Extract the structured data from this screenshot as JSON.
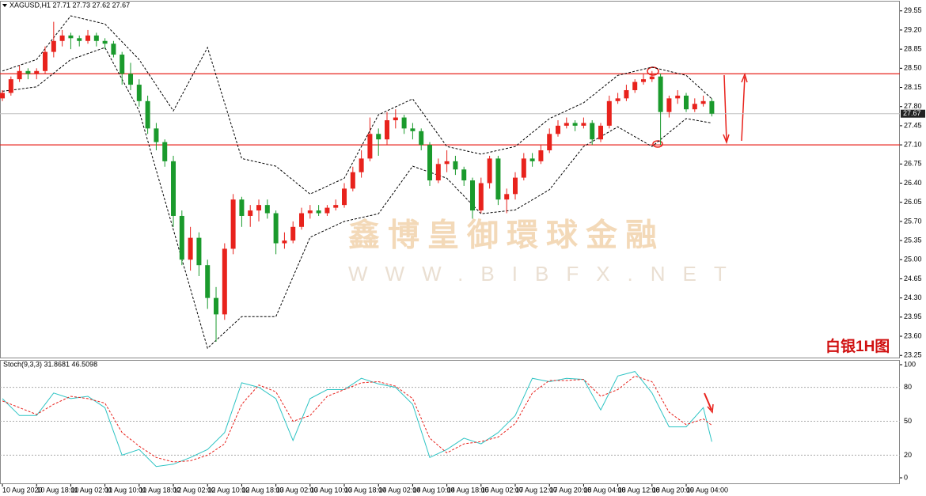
{
  "chart_data": {
    "type": "candlestick",
    "title": "XAGUSD,H1  27.71 27.73 27.62 27.67",
    "annotation": "白银1H图",
    "watermark": [
      "鑫博皇御環球金融",
      "WWW.BIBFX.NET"
    ],
    "up_color": "#e8221c",
    "down_color": "#1a9a2c",
    "xlim": [
      -0.28,
      105
    ],
    "ylim": [
      23.21,
      29.72
    ],
    "yticks": [
      {
        "value": 29.55,
        "label": "29.55"
      },
      {
        "value": 29.2,
        "label": "29.20"
      },
      28.85,
      {
        "value": 28.5,
        "label": "28.50"
      },
      28.15,
      {
        "value": 27.8,
        "label": "27.80"
      },
      27.45,
      {
        "value": 27.1,
        "label": "27.10"
      },
      26.75,
      {
        "value": 26.4,
        "label": "26.40"
      },
      26.05,
      {
        "value": 25.7,
        "label": "25.70"
      },
      25.35,
      {
        "value": 25,
        "label": "25.00"
      },
      24.65,
      {
        "value": 24.3,
        "label": "24.30"
      },
      23.95,
      {
        "value": 23.6,
        "label": "23.60"
      },
      23.25
    ],
    "xticks": [
      {
        "value": 0,
        "label": "10 Aug 2020"
      },
      {
        "value": 4,
        "label": "10 Aug 18:00"
      },
      {
        "value": 8,
        "label": "11 Aug 02:00"
      },
      {
        "value": 12,
        "label": "11 Aug 10:00"
      },
      {
        "value": 16,
        "label": "11 Aug 18:00"
      },
      {
        "value": 20,
        "label": "12 Aug 02:00"
      },
      {
        "value": 24,
        "label": "12 Aug 10:00"
      },
      {
        "value": 28,
        "label": "12 Aug 18:00"
      },
      {
        "value": 32,
        "label": "13 Aug 02:00"
      },
      {
        "value": 36,
        "label": "13 Aug 10:00"
      },
      {
        "value": 40,
        "label": "13 Aug 18:00"
      },
      {
        "value": 44,
        "label": "14 Aug 02:00"
      },
      {
        "value": 48,
        "label": "14 Aug 10:00"
      },
      {
        "value": 52,
        "label": "14 Aug 18:00"
      },
      {
        "value": 56,
        "label": "15 Aug 02:00"
      },
      {
        "value": 60,
        "label": "17 Aug 12:00"
      },
      {
        "value": 64,
        "label": "17 Aug 20:00"
      },
      {
        "value": 68,
        "label": "18 Aug 04:00"
      },
      {
        "value": 72,
        "label": "18 Aug 12:00"
      },
      {
        "value": 76,
        "label": "18 Aug 20:00"
      },
      {
        "value": 80,
        "label": "19 Aug 04:00"
      }
    ],
    "candles": [
      [
        27.95,
        28.1,
        27.9,
        28.05
      ],
      [
        28.05,
        28.35,
        28.0,
        28.3
      ],
      [
        28.3,
        28.55,
        28.25,
        28.45
      ],
      [
        28.45,
        28.5,
        28.3,
        28.4
      ],
      [
        28.4,
        28.5,
        28.3,
        28.45
      ],
      [
        28.45,
        28.9,
        28.4,
        28.8
      ],
      [
        28.8,
        29.35,
        28.7,
        29.0
      ],
      [
        29.0,
        29.2,
        28.9,
        29.1
      ],
      [
        29.1,
        29.15,
        28.85,
        29.05
      ],
      [
        29.05,
        29.1,
        28.9,
        29.0
      ],
      [
        29.0,
        29.2,
        28.95,
        29.1
      ],
      [
        29.1,
        29.15,
        28.9,
        29.0
      ],
      [
        29.0,
        29.05,
        28.85,
        28.95
      ],
      [
        28.95,
        29.0,
        28.7,
        28.75
      ],
      [
        28.75,
        28.8,
        28.2,
        28.4
      ],
      [
        28.4,
        28.6,
        28.1,
        28.2
      ],
      [
        28.2,
        28.3,
        27.8,
        27.9
      ],
      [
        27.9,
        28.0,
        27.3,
        27.4
      ],
      [
        27.4,
        27.5,
        27.0,
        27.15
      ],
      [
        27.15,
        27.2,
        26.7,
        26.8
      ],
      [
        26.8,
        26.9,
        25.6,
        25.8
      ],
      [
        25.8,
        25.9,
        24.9,
        25.0
      ],
      [
        25.0,
        25.6,
        24.8,
        25.4
      ],
      [
        25.4,
        25.5,
        24.7,
        24.9
      ],
      [
        24.9,
        25.0,
        24.1,
        24.3
      ],
      [
        24.3,
        24.5,
        23.5,
        24.0
      ],
      [
        24.0,
        25.3,
        23.9,
        25.2
      ],
      [
        25.2,
        26.2,
        25.1,
        26.1
      ],
      [
        26.1,
        26.15,
        25.6,
        25.8
      ],
      [
        25.8,
        26.0,
        25.6,
        25.9
      ],
      [
        25.9,
        26.1,
        25.7,
        26.0
      ],
      [
        26.0,
        26.1,
        25.75,
        25.85
      ],
      [
        25.85,
        25.9,
        25.1,
        25.3
      ],
      [
        25.3,
        25.5,
        25.2,
        25.35
      ],
      [
        25.35,
        25.7,
        25.3,
        25.6
      ],
      [
        25.6,
        25.95,
        25.55,
        25.85
      ],
      [
        25.85,
        26.0,
        25.75,
        25.9
      ],
      [
        25.9,
        26.0,
        25.8,
        25.85
      ],
      [
        25.85,
        26.0,
        25.8,
        25.95
      ],
      [
        25.95,
        26.1,
        25.9,
        26.0
      ],
      [
        26.0,
        26.4,
        25.95,
        26.3
      ],
      [
        26.3,
        26.7,
        26.25,
        26.6
      ],
      [
        26.6,
        27.0,
        26.5,
        26.85
      ],
      [
        26.85,
        27.6,
        26.8,
        27.3
      ],
      [
        27.3,
        27.4,
        26.9,
        27.2
      ],
      [
        27.2,
        27.7,
        27.1,
        27.55
      ],
      [
        27.55,
        27.75,
        27.4,
        27.6
      ],
      [
        27.6,
        27.65,
        27.3,
        27.4
      ],
      [
        27.4,
        27.5,
        27.2,
        27.35
      ],
      [
        27.35,
        27.4,
        27.0,
        27.1
      ],
      [
        27.1,
        27.15,
        26.35,
        26.45
      ],
      [
        26.45,
        26.85,
        26.4,
        26.75
      ],
      [
        26.75,
        27.0,
        26.6,
        26.8
      ],
      [
        26.8,
        26.9,
        26.55,
        26.65
      ],
      [
        26.65,
        26.7,
        26.35,
        26.45
      ],
      [
        26.45,
        26.5,
        25.75,
        25.9
      ],
      [
        25.9,
        26.5,
        25.85,
        26.4
      ],
      [
        26.4,
        26.9,
        26.3,
        26.85
      ],
      [
        26.85,
        26.9,
        26.0,
        26.1
      ],
      [
        26.1,
        26.3,
        25.85,
        26.2
      ],
      [
        26.2,
        26.6,
        26.1,
        26.5
      ],
      [
        26.5,
        26.95,
        26.45,
        26.85
      ],
      [
        26.85,
        26.95,
        26.7,
        26.8
      ],
      [
        26.8,
        27.1,
        26.75,
        27.0
      ],
      [
        27.0,
        27.4,
        26.95,
        27.3
      ],
      [
        27.3,
        27.55,
        27.25,
        27.45
      ],
      [
        27.45,
        27.6,
        27.4,
        27.5
      ],
      [
        27.5,
        27.55,
        27.35,
        27.45
      ],
      [
        27.45,
        27.6,
        27.4,
        27.5
      ],
      [
        27.5,
        27.55,
        27.1,
        27.2
      ],
      [
        27.2,
        27.5,
        27.15,
        27.45
      ],
      [
        27.45,
        28.0,
        27.4,
        27.9
      ],
      [
        27.9,
        28.05,
        27.85,
        27.95
      ],
      [
        27.95,
        28.2,
        27.9,
        28.1
      ],
      [
        28.1,
        28.3,
        28.05,
        28.25
      ],
      [
        28.25,
        28.4,
        28.2,
        28.3
      ],
      [
        28.3,
        28.45,
        28.25,
        28.35
      ],
      [
        28.35,
        28.4,
        27.1,
        27.7
      ],
      [
        27.7,
        28.0,
        27.6,
        27.95
      ],
      [
        27.95,
        28.1,
        27.85,
        28.0
      ],
      [
        28.0,
        28.05,
        27.7,
        27.75
      ],
      [
        27.75,
        27.95,
        27.7,
        27.85
      ],
      [
        27.85,
        28.0,
        27.8,
        27.9
      ],
      [
        27.9,
        27.95,
        27.62,
        27.67
      ]
    ],
    "bands": {
      "color": "#000000",
      "x": [
        0,
        4,
        8,
        12,
        16,
        20,
        24,
        28,
        32,
        36,
        40,
        44,
        48,
        52,
        56,
        60,
        64,
        68,
        72,
        76,
        80,
        83
      ],
      "upper": [
        28.45,
        28.66,
        29.46,
        29.31,
        28.66,
        27.72,
        28.88,
        26.85,
        26.71,
        26.2,
        26.49,
        27.65,
        27.94,
        27.07,
        26.93,
        27.07,
        27.58,
        27.87,
        28.37,
        28.52,
        28.37,
        27.94
      ],
      "lower": [
        28.08,
        28.16,
        28.66,
        28.88,
        27.72,
        25.55,
        23.38,
        23.96,
        23.96,
        25.41,
        25.7,
        25.84,
        26.71,
        26.49,
        25.84,
        25.91,
        26.28,
        27.07,
        27.43,
        27.07,
        27.58,
        27.5
      ]
    },
    "levels": {
      "color": "#e8221c",
      "values": [
        28.4,
        27.1
      ]
    },
    "last": 27.67,
    "indicator": {
      "title": "Stoch(9,3,3) 31.8681 46.5098",
      "ylim": [
        -5.6,
        104.2
      ],
      "yticks": [
        100,
        80,
        50,
        20,
        0
      ],
      "x": [
        0,
        2,
        4,
        6,
        8,
        10,
        12,
        14,
        16,
        18,
        20,
        22,
        24,
        26,
        28,
        30,
        32,
        34,
        36,
        38,
        40,
        42,
        44,
        46,
        48,
        50,
        52,
        54,
        56,
        58,
        60,
        62,
        64,
        66,
        68,
        70,
        72,
        74,
        76,
        78,
        80,
        82,
        83
      ],
      "series": [
        {
          "color": "#2ec4c4",
          "values": [
            70,
            55,
            55,
            75,
            70,
            72,
            62,
            20,
            25,
            10,
            12,
            18,
            25,
            40,
            84,
            80,
            70,
            33,
            70,
            78,
            78,
            88,
            83,
            80,
            65,
            18,
            25,
            35,
            30,
            40,
            55,
            88,
            85,
            88,
            87,
            60,
            90,
            94,
            75,
            45,
            45,
            62,
            31.87
          ]
        },
        {
          "color": "#e8221c",
          "values": [
            68,
            62,
            56,
            65,
            72,
            70,
            66,
            40,
            28,
            18,
            14,
            15,
            20,
            30,
            65,
            82,
            76,
            50,
            55,
            72,
            78,
            84,
            85,
            81,
            70,
            35,
            22,
            30,
            32,
            36,
            48,
            75,
            86,
            86,
            87,
            72,
            78,
            90,
            85,
            58,
            47,
            52,
            46.51
          ]
        }
      ]
    }
  }
}
